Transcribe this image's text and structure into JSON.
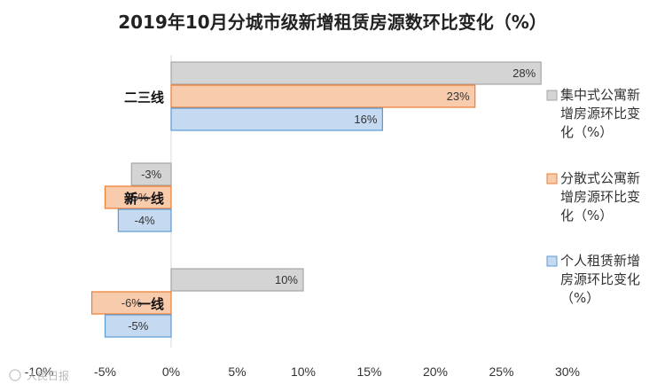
{
  "chart_data": {
    "type": "bar",
    "orientation": "horizontal",
    "title": "2019年10月分城市级新增租赁房源数环比变化（%）",
    "categories": [
      "二三线",
      "新一线",
      "一线"
    ],
    "series": [
      {
        "name": "集中式公寓新增房源环比变化（%）",
        "values": [
          28,
          -3,
          10
        ],
        "labels": [
          "28%",
          "-3%",
          "10%"
        ],
        "color": "#d4d4d4",
        "stroke": "#a6a6a6"
      },
      {
        "name": "分散式公寓新增房源环比变化（%）",
        "values": [
          23,
          -5,
          -6
        ],
        "labels": [
          "23%",
          "-5%",
          "-6%"
        ],
        "color": "#f8cbad",
        "stroke": "#ed7d31"
      },
      {
        "name": "个人租赁新增房源环比变化（%）",
        "values": [
          16,
          -4,
          -5
        ],
        "labels": [
          "16%",
          "-4%",
          "-5%"
        ],
        "color": "#c5d9f1",
        "stroke": "#5b9bd5"
      }
    ],
    "xlim": [
      -10,
      30
    ],
    "xticks": [
      -10,
      -5,
      0,
      5,
      10,
      15,
      20,
      25,
      30
    ],
    "xtick_labels": [
      "-10%",
      "-5%",
      "0%",
      "5%",
      "10%",
      "15%",
      "20%",
      "25%",
      "30%"
    ],
    "legend_position": "right",
    "legend_lines": [
      [
        "集中式公寓新",
        "增房源环比变",
        "化（%）"
      ],
      [
        "分散式公寓新",
        "增房源环比变",
        "化（%）"
      ],
      [
        "个人租赁新增",
        "房源环比变化",
        "（%）"
      ]
    ],
    "grid": false
  },
  "watermark": "人民日报"
}
